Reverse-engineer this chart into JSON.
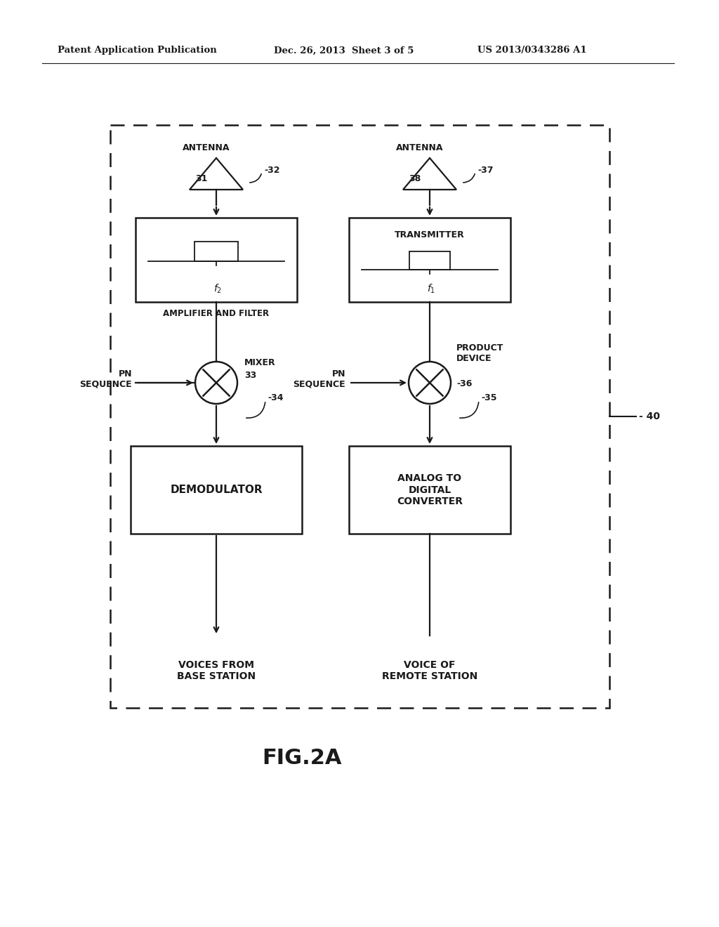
{
  "bg_color": "#ffffff",
  "line_color": "#1a1a1a",
  "header_left": "Patent Application Publication",
  "header_mid": "Dec. 26, 2013  Sheet 3 of 5",
  "header_right": "US 2013/0343286 A1",
  "figure_label": "FIG.2A",
  "left_antenna_text": "ANTENNA",
  "left_antenna_num": "31",
  "right_antenna_text": "ANTENNA",
  "right_antenna_num": "38",
  "left_filter_label": "AMPLIFIER AND FILTER",
  "right_filter_label": "TRANSMITTER",
  "left_filter_freq": "f2",
  "right_filter_freq": "f1",
  "left_mixer_label": "MIXER",
  "left_mixer_num": "33",
  "right_device_label": "PRODUCT\nDEVICE",
  "right_device_num": "-36",
  "left_pn_label": "PN\nSEQUENCE",
  "right_pn_label": "PN\nSEQUENCE",
  "left_demod_label": "DEMODULATOR",
  "right_adc_label": "ANALOG TO\nDIGITAL\nCONVERTER",
  "left_output_label": "VOICES FROM\nBASE STATION",
  "right_output_label": "VOICE OF\nREMOTE STATION",
  "ref_32": "-32",
  "ref_34": "-34",
  "ref_35": "-35",
  "ref_37": "-37",
  "ref_40": "- 40"
}
